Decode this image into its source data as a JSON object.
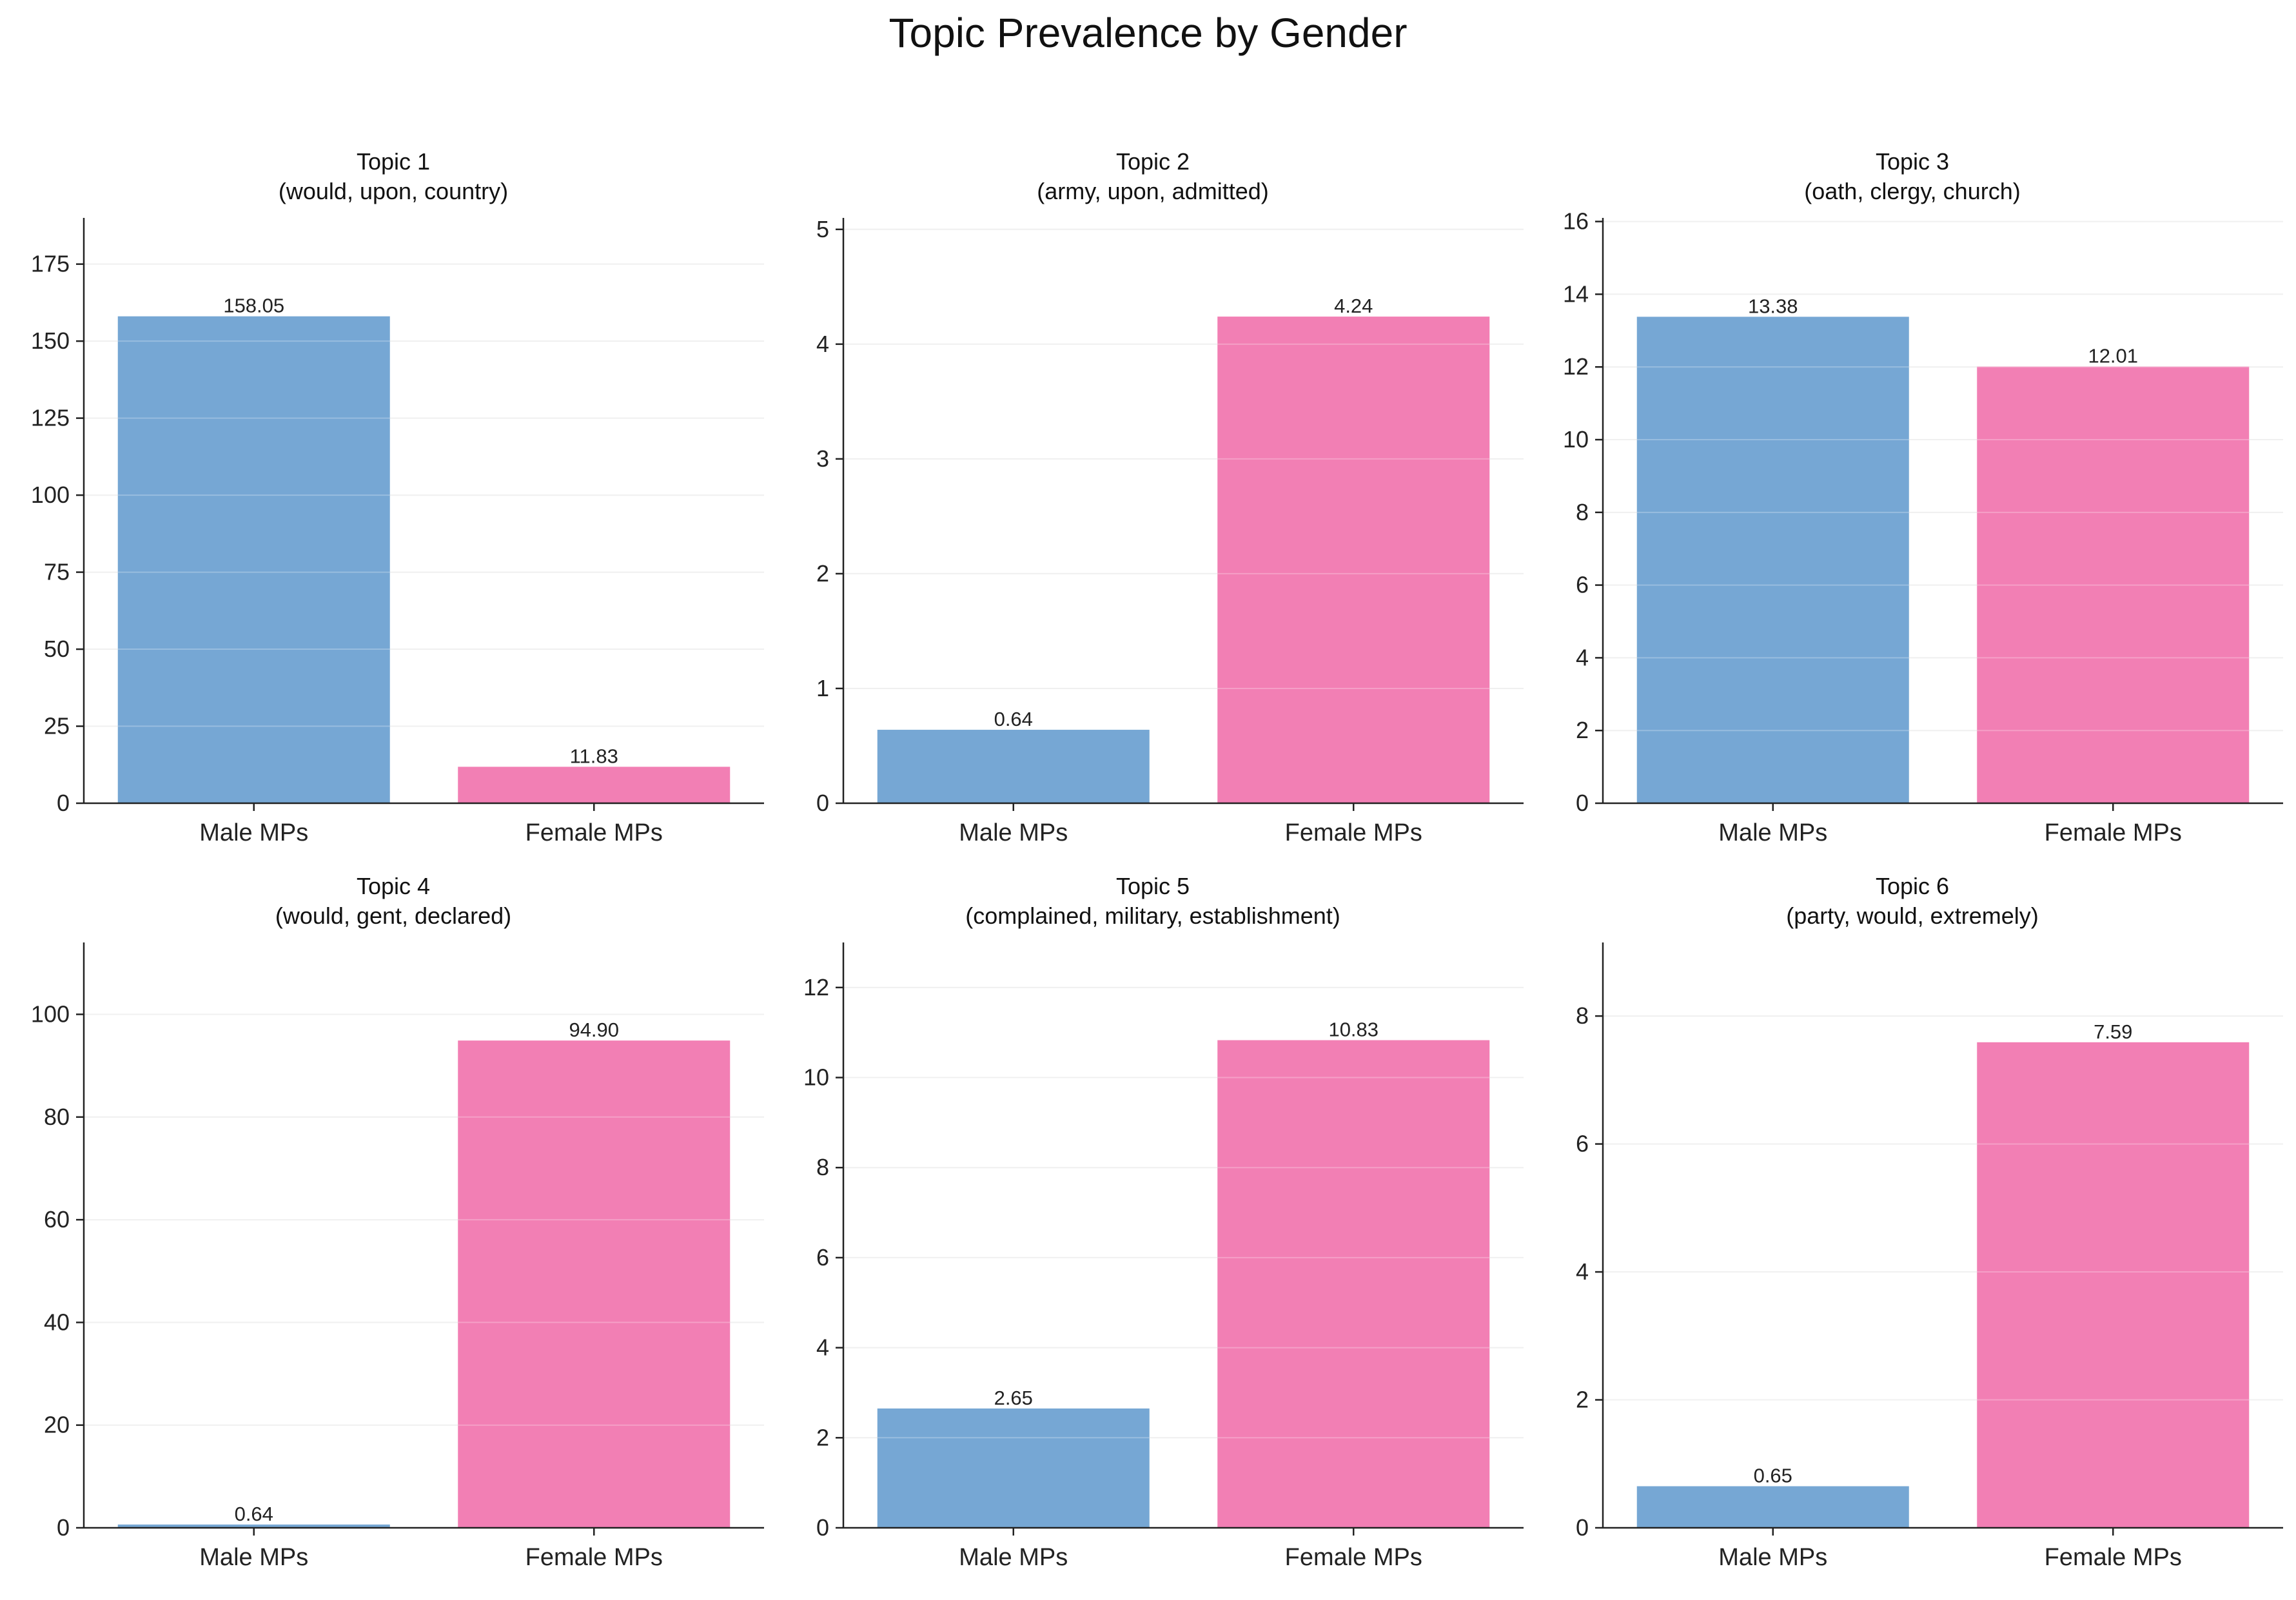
{
  "title": "Topic Prevalence by Gender",
  "colors": {
    "male": "#76a7d4",
    "female": "#f27fb4"
  },
  "chart_data": [
    {
      "type": "bar",
      "title": "Topic 1",
      "subtitle": "(would, upon, country)",
      "categories": [
        "Male MPs",
        "Female MPs"
      ],
      "values": [
        158.05,
        11.83
      ],
      "labels": [
        "158.05",
        "11.83"
      ],
      "ylim": [
        0,
        190
      ],
      "yticks": [
        0,
        25,
        50,
        75,
        100,
        125,
        150,
        175
      ],
      "grid": true
    },
    {
      "type": "bar",
      "title": "Topic 2",
      "subtitle": "(army, upon, admitted)",
      "categories": [
        "Male MPs",
        "Female MPs"
      ],
      "values": [
        0.64,
        4.24
      ],
      "labels": [
        "0.64",
        "4.24"
      ],
      "ylim": [
        0,
        5.1
      ],
      "yticks": [
        0,
        1,
        2,
        3,
        4,
        5
      ],
      "grid": true
    },
    {
      "type": "bar",
      "title": "Topic 3",
      "subtitle": "(oath, clergy, church)",
      "categories": [
        "Male MPs",
        "Female MPs"
      ],
      "values": [
        13.38,
        12.01
      ],
      "labels": [
        "13.38",
        "12.01"
      ],
      "ylim": [
        0,
        16.1
      ],
      "yticks": [
        0,
        2,
        4,
        6,
        8,
        10,
        12,
        14,
        16
      ],
      "grid": true
    },
    {
      "type": "bar",
      "title": "Topic 4",
      "subtitle": "(would, gent, declared)",
      "categories": [
        "Male MPs",
        "Female MPs"
      ],
      "values": [
        0.64,
        94.9
      ],
      "labels": [
        "0.64",
        "94.90"
      ],
      "ylim": [
        0,
        114
      ],
      "yticks": [
        0,
        20,
        40,
        60,
        80,
        100
      ],
      "grid": true
    },
    {
      "type": "bar",
      "title": "Topic 5",
      "subtitle": "(complained, military, establishment)",
      "categories": [
        "Male MPs",
        "Female MPs"
      ],
      "values": [
        2.65,
        10.83
      ],
      "labels": [
        "2.65",
        "10.83"
      ],
      "ylim": [
        0,
        13
      ],
      "yticks": [
        0,
        2,
        4,
        6,
        8,
        10,
        12
      ],
      "grid": true
    },
    {
      "type": "bar",
      "title": "Topic 6",
      "subtitle": "(party, would, extremely)",
      "categories": [
        "Male MPs",
        "Female MPs"
      ],
      "values": [
        0.65,
        7.59
      ],
      "labels": [
        "0.65",
        "7.59"
      ],
      "ylim": [
        0,
        9.15
      ],
      "yticks": [
        0,
        2,
        4,
        6,
        8
      ],
      "grid": true
    }
  ]
}
